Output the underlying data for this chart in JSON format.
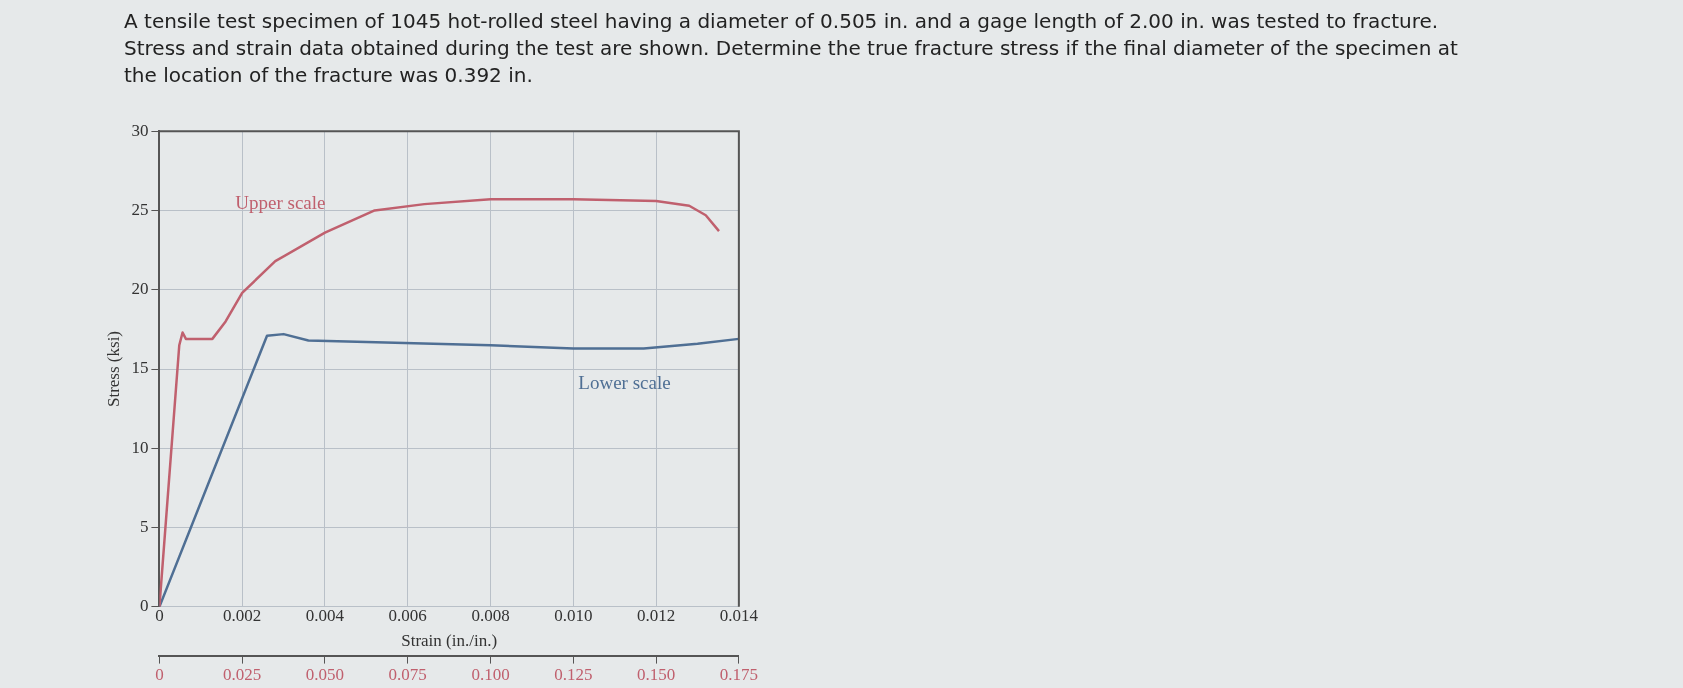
{
  "chart_data": {
    "type": "line",
    "title": "A tensile test specimen of 1045 hot-rolled steel having a diameter of 0.505 in. and a gage length of 2.00 in. was tested to fracture. Stress and strain data obtained during the test are shown. Determine the true fracture stress if the final diameter of the specimen at the location of the fracture was 0.392 in.",
    "xlabel": "Strain (in./in.)",
    "ylabel": "Stress (ksi)",
    "xlim": [
      0,
      0.014
    ],
    "xticks": [
      0,
      0.002,
      0.004,
      0.006,
      0.008,
      {
        "value": 0.01,
        "label": "0.010"
      },
      0.012,
      0.014
    ],
    "x2lim": [
      0,
      0.175
    ],
    "x2ticks": [
      0,
      0.025,
      {
        "value": 0.05,
        "label": "0.050"
      },
      0.075,
      {
        "value": 0.1,
        "label": "0.100"
      },
      0.125,
      {
        "value": 0.15,
        "label": "0.150"
      },
      0.175
    ],
    "ylim": [
      0,
      30
    ],
    "yticks": [
      0,
      5,
      10,
      15,
      20,
      25,
      30
    ],
    "grid": true,
    "legend": false,
    "marker": "none",
    "line_style": "solid",
    "series": [
      {
        "name": "Upper scale",
        "color": "#c0606e",
        "axis": "x2",
        "x": [
          0,
          0.006,
          0.007,
          0.008,
          0.016,
          0.02,
          0.025,
          0.035,
          0.05,
          0.065,
          0.08,
          0.1,
          0.125,
          0.15,
          0.16,
          0.165,
          0.169
        ],
        "values": [
          0,
          16.5,
          17.3,
          16.9,
          16.9,
          18,
          19.8,
          21.8,
          23.6,
          25.0,
          25.4,
          25.7,
          25.7,
          25.6,
          25.3,
          24.7,
          23.7
        ]
      },
      {
        "name": "Lower scale",
        "color": "#4f6f94",
        "x": [
          0,
          0.0026,
          0.003,
          0.0036,
          0.005,
          0.008,
          0.01,
          0.0117,
          0.013,
          0.014
        ],
        "values": [
          0,
          17.1,
          17.2,
          16.8,
          16.7,
          16.5,
          16.3,
          16.3,
          16.6,
          16.9
        ]
      }
    ]
  }
}
